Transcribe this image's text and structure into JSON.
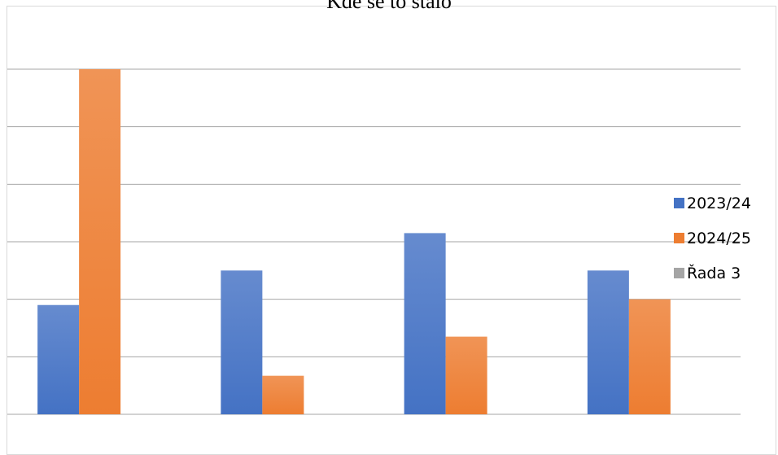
{
  "chart_data": {
    "type": "bar",
    "title": "Kde se to stalo",
    "categories": [
      "",
      "",
      "",
      ""
    ],
    "series": [
      {
        "name": "2023/24",
        "values": [
          1.9,
          2.5,
          3.15,
          2.5
        ],
        "color": "#4472C4"
      },
      {
        "name": "2024/25",
        "values": [
          6.0,
          0.67,
          1.35,
          2.0
        ],
        "color": "#ED7D31"
      },
      {
        "name": "Řada 3",
        "values": [
          null,
          null,
          null,
          null
        ],
        "color": "#A5A5A5"
      }
    ],
    "ylim": [
      0,
      6
    ],
    "grid": true,
    "legend": "right",
    "xlabel": "",
    "ylabel": ""
  }
}
